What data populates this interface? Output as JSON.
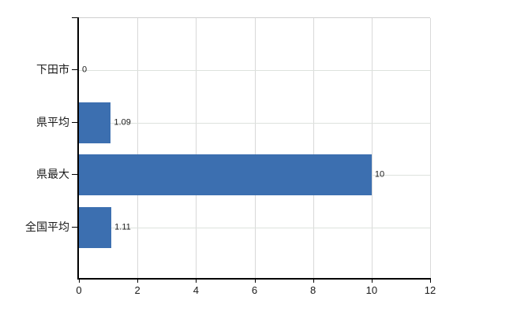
{
  "canvas": {
    "background": "#ffffff"
  },
  "chart_data": {
    "type": "bar",
    "orientation": "horizontal",
    "title": "",
    "categories": [
      "下田市",
      "県平均",
      "県最大",
      "全国平均"
    ],
    "values": [
      0,
      1.09,
      10,
      1.11
    ],
    "value_labels": [
      "0",
      "1.09",
      "10",
      "1.11"
    ],
    "x_ticks": [
      "0",
      "2",
      "4",
      "6",
      "8",
      "10",
      "12"
    ],
    "x_tick_values": [
      0,
      2,
      4,
      6,
      8,
      10,
      12
    ],
    "xlim": [
      0,
      12
    ],
    "xlabel": "",
    "ylabel": "",
    "grid": true,
    "legend": false,
    "colors": {
      "bar": "#3c6fb0",
      "vertical_grid": "#d9d9d9",
      "horizontal_grid": "#dde2dd",
      "axis": "#000000",
      "text": "#1a1a1a",
      "plot_top_border": "#cfcfcf"
    }
  }
}
